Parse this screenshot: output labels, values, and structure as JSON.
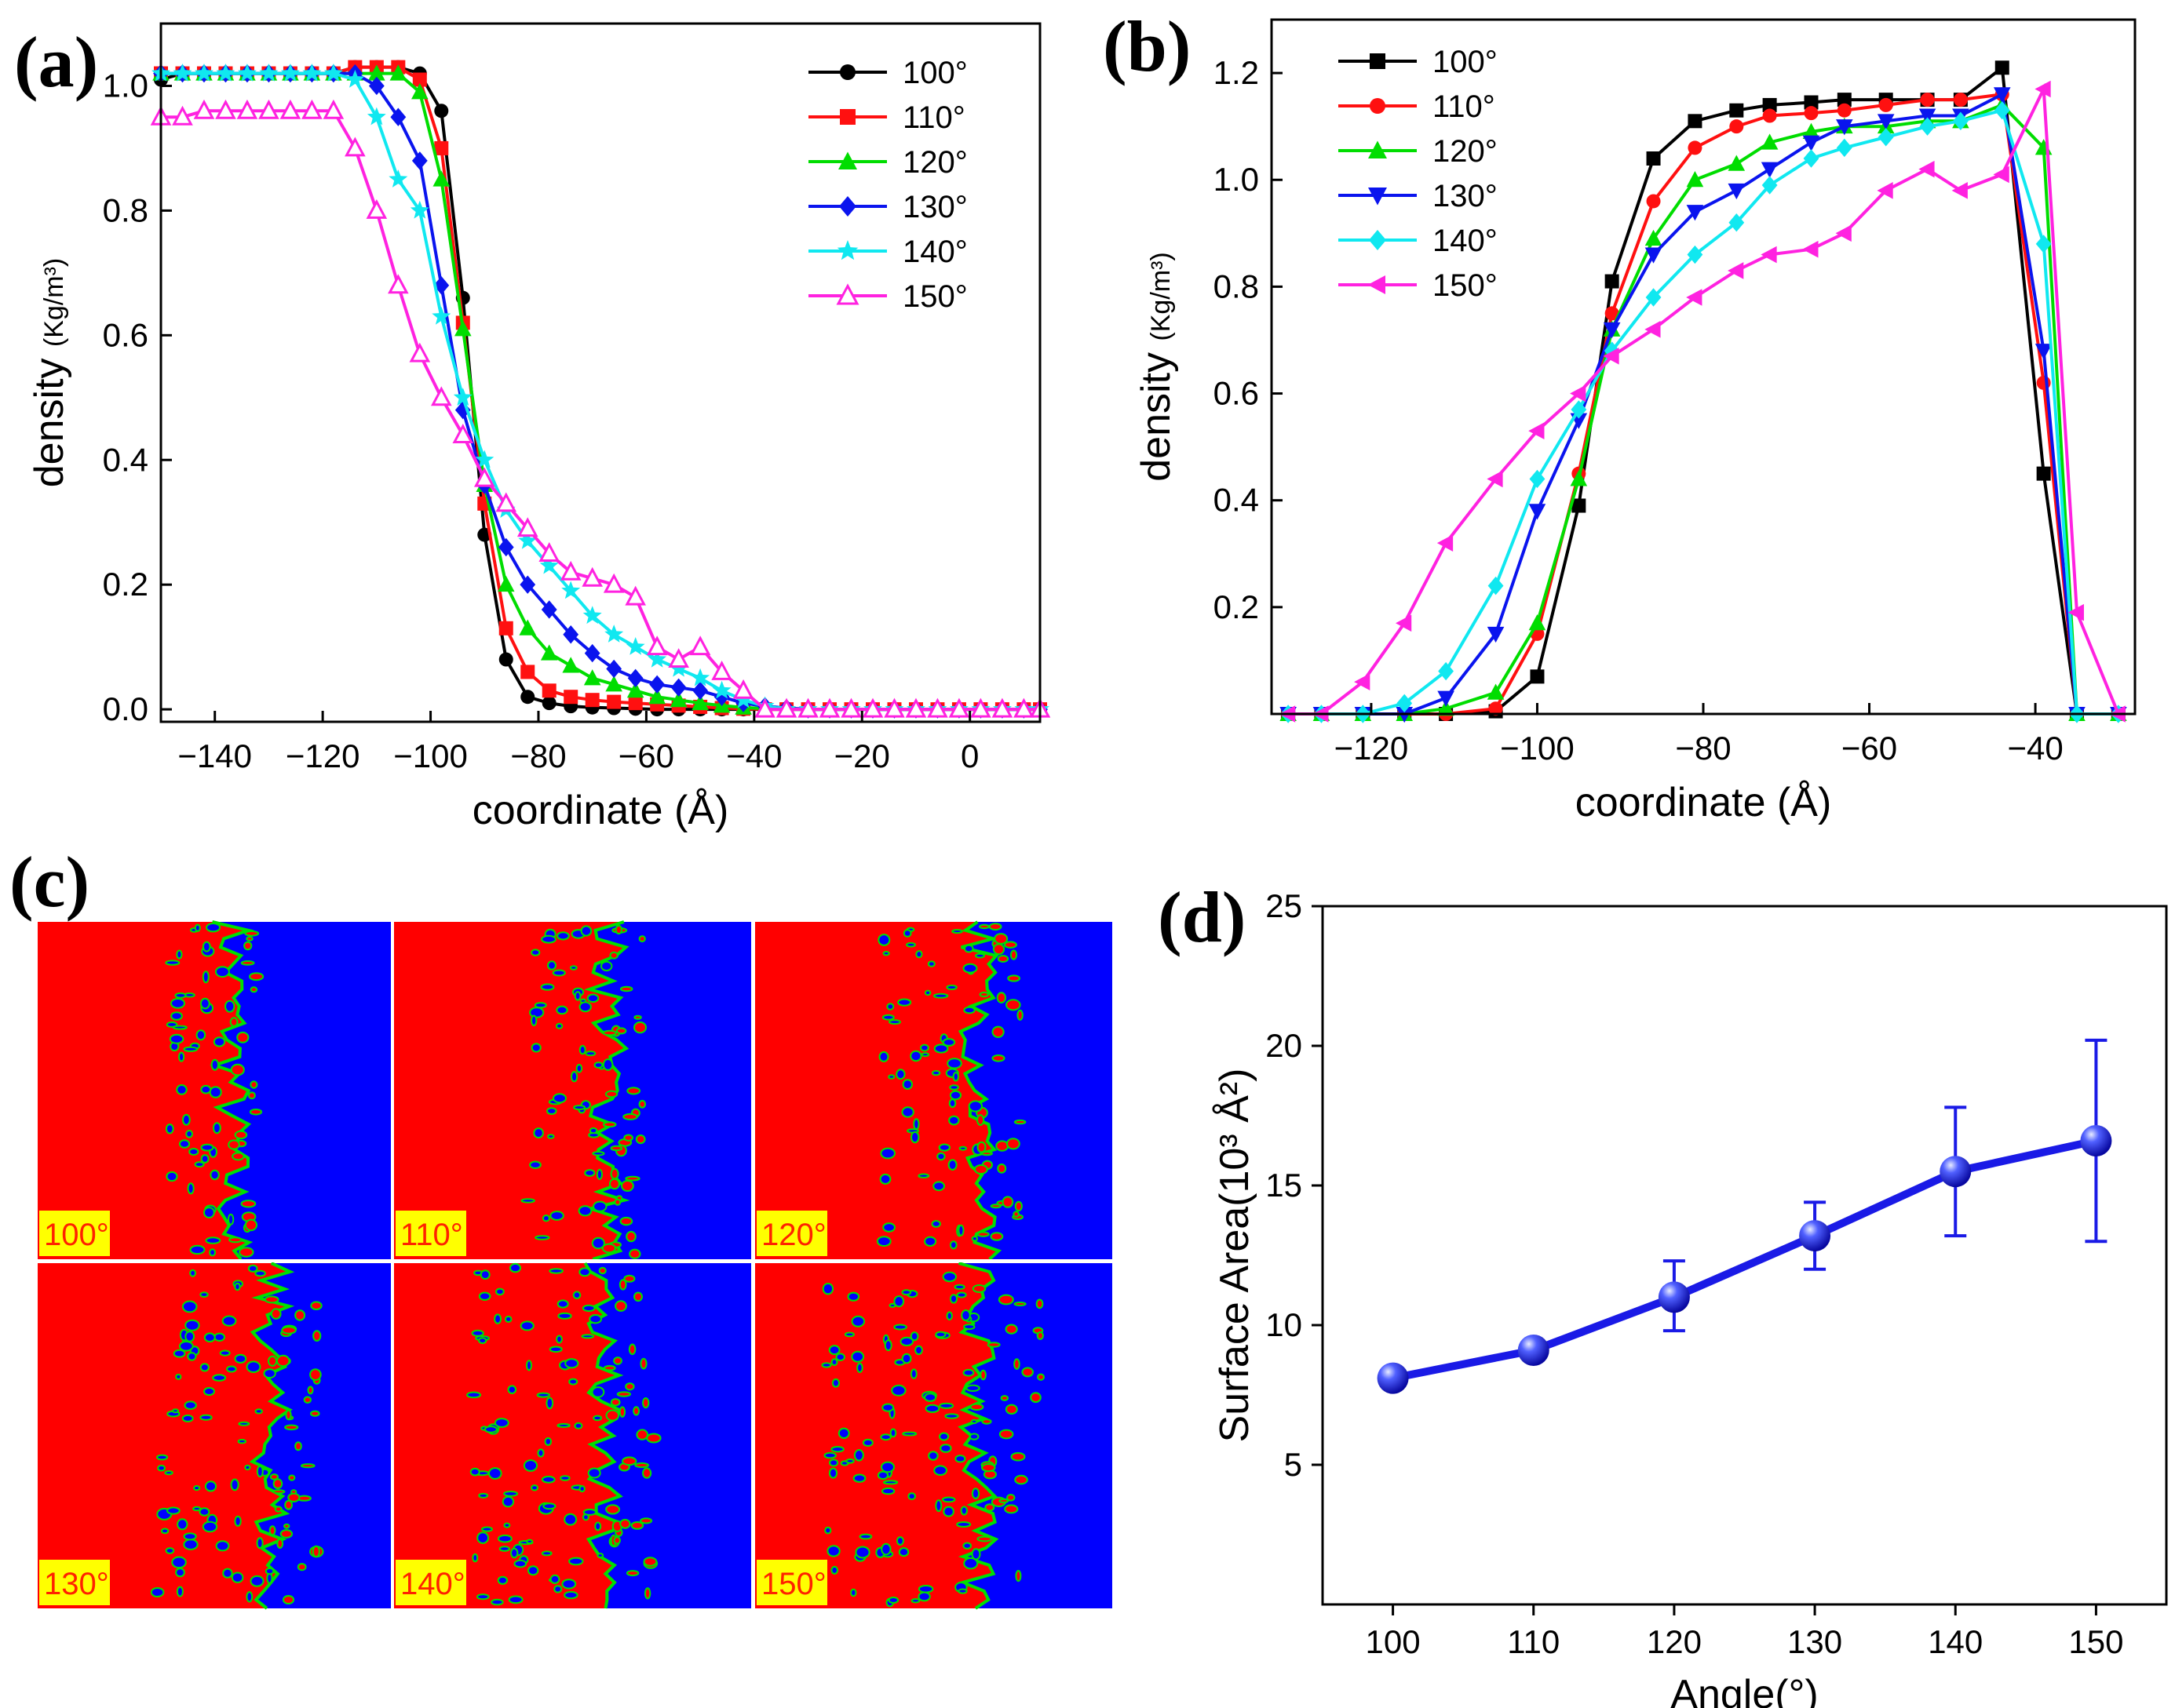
{
  "chart_data": [
    {
      "type": "line",
      "panel": "(a)",
      "xlabel": "coordinate (Å)",
      "ylabel": "density",
      "ylabel_unit": "(Kg/m³)",
      "xlim": [
        -150,
        13
      ],
      "ylim": [
        -0.02,
        1.1
      ],
      "xticks": [
        -140,
        -120,
        -100,
        -80,
        -60,
        -40,
        -20,
        0
      ],
      "yticks": [
        0.0,
        0.2,
        0.4,
        0.6,
        0.8,
        1.0
      ],
      "ytick_labels": [
        "0.0",
        "0.2",
        "0.4",
        "0.6",
        "0.8",
        "1.0"
      ],
      "legend_position": "top-right",
      "x": [
        -150,
        -146,
        -142,
        -138,
        -134,
        -130,
        -126,
        -122,
        -118,
        -114,
        -110,
        -106,
        -102,
        -98,
        -94,
        -90,
        -86,
        -82,
        -78,
        -74,
        -70,
        -66,
        -62,
        -58,
        -54,
        -50,
        -46,
        -42,
        -38,
        -34,
        -30,
        -26,
        -22,
        -18,
        -14,
        -10,
        -6,
        -2,
        2,
        6,
        10,
        13
      ],
      "series": [
        {
          "name": "100°",
          "color": "#000000",
          "marker": "circle",
          "values": [
            1.01,
            1.02,
            1.02,
            1.02,
            1.02,
            1.02,
            1.02,
            1.02,
            1.02,
            1.03,
            1.03,
            1.03,
            1.02,
            0.96,
            0.66,
            0.28,
            0.08,
            0.02,
            0.01,
            0.005,
            0.003,
            0.002,
            0.001,
            0.0,
            0.0,
            0.0,
            0.0,
            0.0,
            0.0,
            0.0,
            0.0,
            0.0,
            0.0,
            0.0,
            0.0,
            0.0,
            0.0,
            0.0,
            0.0,
            0.0,
            0.0,
            0.0
          ]
        },
        {
          "name": "110°",
          "color": "#ff1010",
          "marker": "square",
          "values": [
            1.02,
            1.02,
            1.02,
            1.02,
            1.02,
            1.02,
            1.02,
            1.02,
            1.02,
            1.03,
            1.03,
            1.03,
            1.01,
            0.9,
            0.62,
            0.33,
            0.13,
            0.06,
            0.03,
            0.02,
            0.015,
            0.012,
            0.01,
            0.008,
            0.006,
            0.004,
            0.002,
            0.001,
            0.0,
            0.0,
            0.0,
            0.0,
            0.0,
            0.0,
            0.0,
            0.0,
            0.0,
            0.0,
            0.0,
            0.0,
            0.0,
            0.0
          ]
        },
        {
          "name": "120°",
          "color": "#00dd00",
          "marker": "triangle-up",
          "values": [
            1.02,
            1.02,
            1.02,
            1.02,
            1.02,
            1.02,
            1.02,
            1.02,
            1.02,
            1.02,
            1.02,
            1.02,
            0.99,
            0.85,
            0.61,
            0.36,
            0.2,
            0.13,
            0.09,
            0.07,
            0.05,
            0.04,
            0.03,
            0.02,
            0.015,
            0.01,
            0.006,
            0.003,
            0.001,
            0.0,
            0.0,
            0.0,
            0.0,
            0.0,
            0.0,
            0.0,
            0.0,
            0.0,
            0.0,
            0.0,
            0.0,
            0.0
          ]
        },
        {
          "name": "130°",
          "color": "#0a14ee",
          "marker": "diamond",
          "values": [
            1.02,
            1.02,
            1.02,
            1.02,
            1.02,
            1.02,
            1.02,
            1.02,
            1.02,
            1.02,
            1.0,
            0.95,
            0.88,
            0.68,
            0.48,
            0.36,
            0.26,
            0.2,
            0.16,
            0.12,
            0.09,
            0.065,
            0.05,
            0.04,
            0.035,
            0.03,
            0.02,
            0.01,
            0.005,
            0.002,
            0.0,
            0.0,
            0.0,
            0.0,
            0.0,
            0.0,
            0.0,
            0.0,
            0.0,
            0.0,
            0.0,
            0.0
          ]
        },
        {
          "name": "140°",
          "color": "#10e8f0",
          "marker": "star",
          "values": [
            1.02,
            1.02,
            1.02,
            1.02,
            1.02,
            1.02,
            1.02,
            1.02,
            1.02,
            1.01,
            0.95,
            0.85,
            0.8,
            0.63,
            0.5,
            0.4,
            0.32,
            0.27,
            0.23,
            0.19,
            0.15,
            0.12,
            0.1,
            0.08,
            0.065,
            0.05,
            0.03,
            0.015,
            0.005,
            0.0,
            0.0,
            0.0,
            0.0,
            0.0,
            0.0,
            0.0,
            0.0,
            0.0,
            0.0,
            0.0,
            0.0,
            0.0
          ]
        },
        {
          "name": "150°",
          "color": "#ff22e0",
          "marker": "triangle-up-open",
          "values": [
            0.95,
            0.95,
            0.96,
            0.96,
            0.96,
            0.96,
            0.96,
            0.96,
            0.96,
            0.9,
            0.8,
            0.68,
            0.57,
            0.5,
            0.44,
            0.37,
            0.33,
            0.29,
            0.25,
            0.22,
            0.21,
            0.2,
            0.18,
            0.1,
            0.08,
            0.1,
            0.06,
            0.03,
            0.0,
            0.0,
            0.0,
            0.0,
            0.0,
            0.0,
            0.0,
            0.0,
            0.0,
            0.0,
            0.0,
            0.0,
            0.0,
            0.0
          ]
        }
      ]
    },
    {
      "type": "line",
      "panel": "(b)",
      "xlabel": "coordinate (Å)",
      "ylabel": "density",
      "ylabel_unit": "(Kg/m³)",
      "xlim": [
        -132,
        -28
      ],
      "ylim": [
        0,
        1.3
      ],
      "xticks": [
        -120,
        -100,
        -80,
        -60,
        -40
      ],
      "yticks": [
        0.2,
        0.4,
        0.6,
        0.8,
        1.0,
        1.2
      ],
      "ytick_labels": [
        "0.2",
        "0.4",
        "0.6",
        "0.8",
        "1.0",
        "1.2"
      ],
      "legend_position": "top-left",
      "x": [
        -130,
        -126,
        -121,
        -116,
        -111,
        -105,
        -100,
        -95,
        -91,
        -86,
        -81,
        -76,
        -72,
        -67,
        -63,
        -58,
        -53,
        -49,
        -44,
        -39,
        -35,
        -30
      ],
      "series": [
        {
          "name": "100°",
          "color": "#000000",
          "marker": "square",
          "values": [
            0.0,
            0.0,
            0.0,
            0.0,
            0.0,
            0.005,
            0.07,
            0.39,
            0.81,
            1.04,
            1.11,
            1.13,
            1.14,
            1.145,
            1.15,
            1.15,
            1.15,
            1.15,
            1.21,
            0.45,
            0.0,
            0.0
          ]
        },
        {
          "name": "110°",
          "color": "#ff1010",
          "marker": "circle",
          "values": [
            0.0,
            0.0,
            0.0,
            0.0,
            0.0,
            0.01,
            0.15,
            0.45,
            0.75,
            0.96,
            1.06,
            1.1,
            1.12,
            1.125,
            1.13,
            1.14,
            1.15,
            1.15,
            1.16,
            0.62,
            0.0,
            0.0
          ]
        },
        {
          "name": "120°",
          "color": "#00dd00",
          "marker": "triangle-up",
          "values": [
            0.0,
            0.0,
            0.0,
            0.0,
            0.01,
            0.04,
            0.17,
            0.44,
            0.72,
            0.89,
            1.0,
            1.03,
            1.07,
            1.09,
            1.1,
            1.1,
            1.11,
            1.11,
            1.14,
            1.06,
            0.0,
            0.0
          ]
        },
        {
          "name": "130°",
          "color": "#0a14ee",
          "marker": "triangle-down",
          "values": [
            0.0,
            0.0,
            0.0,
            0.0,
            0.03,
            0.15,
            0.38,
            0.55,
            0.72,
            0.86,
            0.94,
            0.98,
            1.02,
            1.07,
            1.1,
            1.11,
            1.12,
            1.12,
            1.16,
            0.68,
            0.0,
            0.0
          ]
        },
        {
          "name": "140°",
          "color": "#10e8f0",
          "marker": "diamond",
          "values": [
            0.0,
            0.0,
            0.0,
            0.02,
            0.08,
            0.24,
            0.44,
            0.57,
            0.68,
            0.78,
            0.86,
            0.92,
            0.99,
            1.04,
            1.06,
            1.08,
            1.1,
            1.11,
            1.13,
            0.88,
            0.0,
            0.0
          ]
        },
        {
          "name": "150°",
          "color": "#ff22e0",
          "marker": "triangle-left",
          "values": [
            0.0,
            0.0,
            0.06,
            0.17,
            0.32,
            0.44,
            0.53,
            0.6,
            0.67,
            0.72,
            0.78,
            0.83,
            0.86,
            0.87,
            0.9,
            0.98,
            1.02,
            0.98,
            1.01,
            1.17,
            0.19,
            0.0
          ]
        }
      ]
    },
    {
      "type": "heatmap",
      "panel": "(c)",
      "tiles": [
        "100°",
        "110°",
        "120°",
        "130°",
        "140°",
        "150°"
      ],
      "colors": {
        "left_phase": "#ff0000",
        "right_phase": "#0000ff",
        "interface": "#00e000"
      }
    },
    {
      "type": "line",
      "panel": "(d)",
      "xlabel": "Angle(°)",
      "ylabel": "Surface Area(10³ Å²)",
      "xlim": [
        95,
        155
      ],
      "ylim": [
        0,
        25
      ],
      "xticks": [
        100,
        110,
        120,
        130,
        140,
        150
      ],
      "yticks": [
        5,
        10,
        15,
        20,
        25
      ],
      "x": [
        100,
        110,
        120,
        130,
        140,
        150
      ],
      "values": [
        8.1,
        9.1,
        11.0,
        13.2,
        15.5,
        16.6
      ],
      "error_low": [
        0.0,
        0.0,
        1.2,
        1.2,
        2.3,
        3.6
      ],
      "error_high": [
        0.0,
        0.0,
        1.3,
        1.2,
        2.3,
        3.6
      ],
      "color": "#1a1ae6"
    }
  ]
}
